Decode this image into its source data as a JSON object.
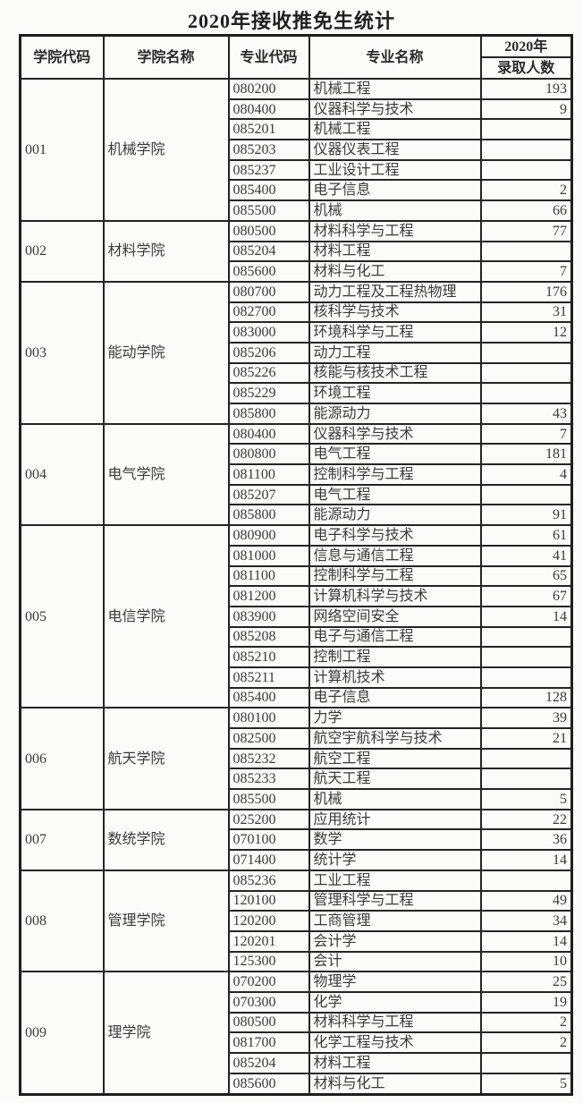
{
  "title": "2020年接收推免生统计",
  "table": {
    "headers": {
      "college_code": "学院代码",
      "college_name": "学院名称",
      "major_code": "专业代码",
      "major_name": "专业名称",
      "year": "2020年",
      "admit_count": "录取人数"
    },
    "sections": [
      {
        "code": "001",
        "name": "机械学院",
        "rows": [
          [
            "080200",
            "机械工程",
            "193"
          ],
          [
            "080400",
            "仪器科学与技术",
            "9"
          ],
          [
            "085201",
            "机械工程",
            ""
          ],
          [
            "085203",
            "仪器仪表工程",
            ""
          ],
          [
            "085237",
            "工业设计工程",
            ""
          ],
          [
            "085400",
            "电子信息",
            "2"
          ],
          [
            "085500",
            "机械",
            "66"
          ]
        ]
      },
      {
        "code": "002",
        "name": "材料学院",
        "rows": [
          [
            "080500",
            "材料科学与工程",
            "77"
          ],
          [
            "085204",
            "材料工程",
            ""
          ],
          [
            "085600",
            "材料与化工",
            "7"
          ]
        ]
      },
      {
        "code": "003",
        "name": "能动学院",
        "rows": [
          [
            "080700",
            "动力工程及工程热物理",
            "176"
          ],
          [
            "082700",
            "核科学与技术",
            "31"
          ],
          [
            "083000",
            "环境科学与工程",
            "12"
          ],
          [
            "085206",
            "动力工程",
            ""
          ],
          [
            "085226",
            "核能与核技术工程",
            ""
          ],
          [
            "085229",
            "环境工程",
            ""
          ],
          [
            "085800",
            "能源动力",
            "43"
          ]
        ]
      },
      {
        "code": "004",
        "name": "电气学院",
        "rows": [
          [
            "080400",
            "仪器科学与技术",
            "7"
          ],
          [
            "080800",
            "电气工程",
            "181"
          ],
          [
            "081100",
            "控制科学与工程",
            "4"
          ],
          [
            "085207",
            "电气工程",
            ""
          ],
          [
            "085800",
            "能源动力",
            "91"
          ]
        ]
      },
      {
        "code": "005",
        "name": "电信学院",
        "rows": [
          [
            "080900",
            "电子科学与技术",
            "61"
          ],
          [
            "081000",
            "信息与通信工程",
            "41"
          ],
          [
            "081100",
            "控制科学与工程",
            "65"
          ],
          [
            "081200",
            "计算机科学与技术",
            "67"
          ],
          [
            "083900",
            "网络空间安全",
            "14"
          ],
          [
            "085208",
            "电子与通信工程",
            ""
          ],
          [
            "085210",
            "控制工程",
            ""
          ],
          [
            "085211",
            "计算机技术",
            ""
          ],
          [
            "085400",
            "电子信息",
            "128"
          ]
        ]
      },
      {
        "code": "006",
        "name": "航天学院",
        "rows": [
          [
            "080100",
            "力学",
            "39"
          ],
          [
            "082500",
            "航空宇航科学与技术",
            "21"
          ],
          [
            "085232",
            "航空工程",
            ""
          ],
          [
            "085233",
            "航天工程",
            ""
          ],
          [
            "085500",
            "机械",
            "5"
          ]
        ]
      },
      {
        "code": "007",
        "name": "数统学院",
        "rows": [
          [
            "025200",
            "应用统计",
            "22"
          ],
          [
            "070100",
            "数学",
            "36"
          ],
          [
            "071400",
            "统计学",
            "14"
          ]
        ]
      },
      {
        "code": "008",
        "name": "管理学院",
        "rows": [
          [
            "085236",
            "工业工程",
            ""
          ],
          [
            "120100",
            "管理科学与工程",
            "49"
          ],
          [
            "120200",
            "工商管理",
            "34"
          ],
          [
            "120201",
            "会计学",
            "14"
          ],
          [
            "125300",
            "会计",
            "10"
          ]
        ]
      },
      {
        "code": "009",
        "name": "理学院",
        "rows": [
          [
            "070200",
            "物理学",
            "25"
          ],
          [
            "070300",
            "化学",
            "19"
          ],
          [
            "080500",
            "材料科学与工程",
            "2"
          ],
          [
            "081700",
            "化学工程与技术",
            "2"
          ],
          [
            "085204",
            "材料工程",
            ""
          ],
          [
            "085600",
            "材料与化工",
            "5"
          ]
        ]
      }
    ]
  },
  "colors": {
    "background": "#fbfbf9",
    "text": "#3a3a3a",
    "border": "#242424",
    "title_text": "#1f1f1f"
  }
}
